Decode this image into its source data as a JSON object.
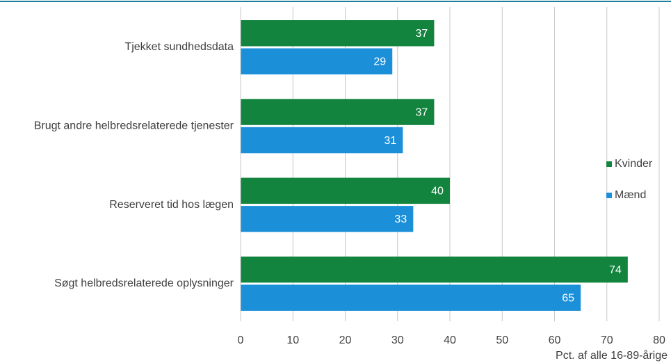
{
  "chart_data": {
    "type": "hbar",
    "categories": [
      "Tjekket sundhedsdata",
      "Brugt andre helbredsrelaterede tjenester",
      "Reserveret tid hos lægen",
      "Søgt helbredsrelaterede oplysninger"
    ],
    "series": [
      {
        "name": "Kvinder",
        "color": "#12843e",
        "values": [
          37,
          37,
          40,
          74
        ]
      },
      {
        "name": "Mænd",
        "color": "#1b8fd8",
        "values": [
          29,
          31,
          33,
          65
        ]
      }
    ],
    "xlim": [
      0,
      80
    ],
    "xticks": [
      0,
      10,
      20,
      30,
      40,
      50,
      60,
      70,
      80
    ],
    "x_label": "Pct. af alle 16-89-årige",
    "grid": true,
    "legend": "right"
  }
}
